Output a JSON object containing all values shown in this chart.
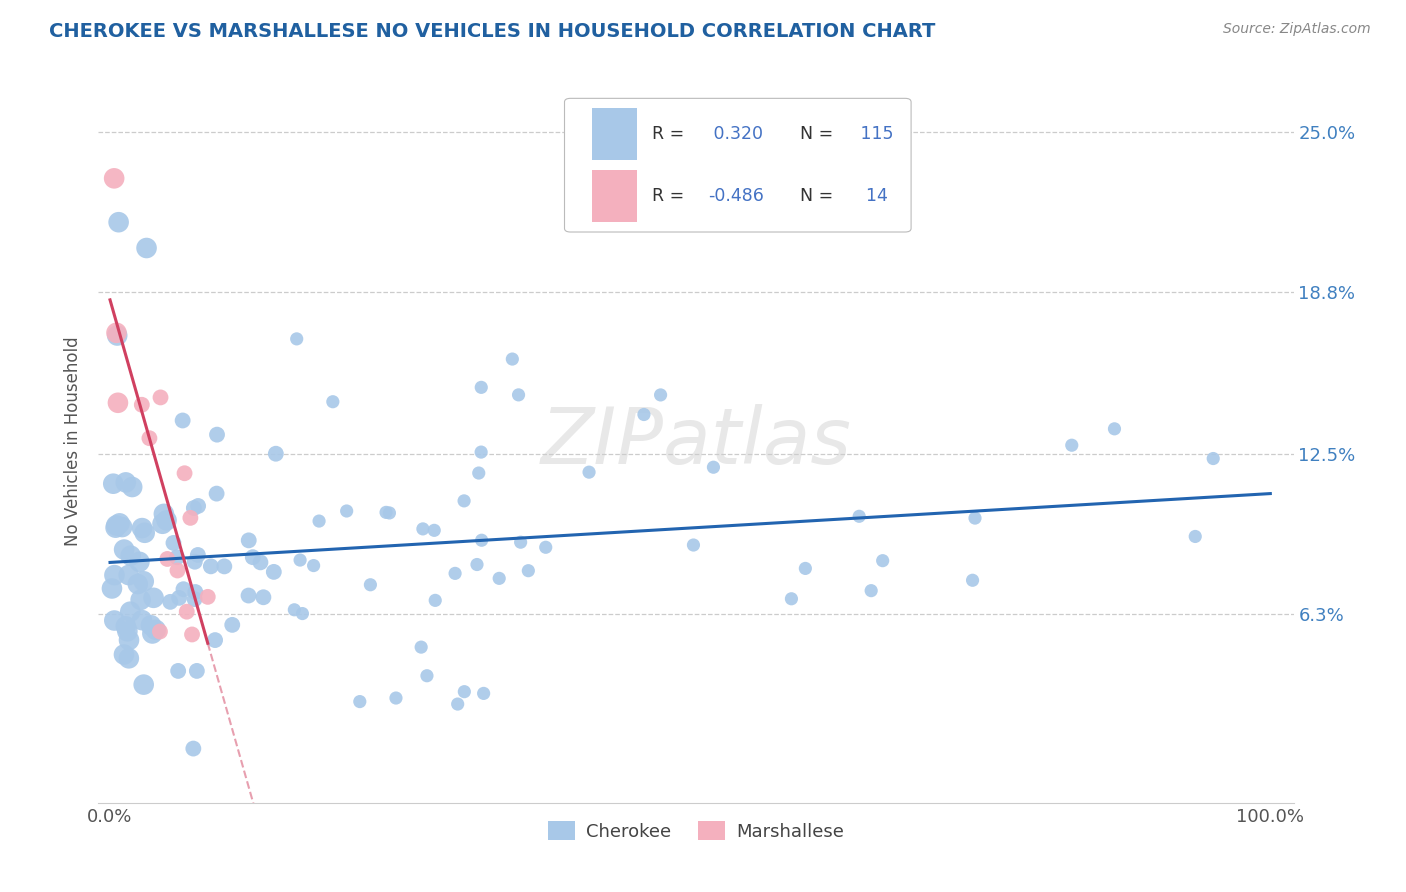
{
  "title": "CHEROKEE VS MARSHALLESE NO VEHICLES IN HOUSEHOLD CORRELATION CHART",
  "source_text": "Source: ZipAtlas.com",
  "ylabel": "No Vehicles in Household",
  "xlim": [
    -1,
    102
  ],
  "ylim": [
    -1,
    27
  ],
  "ytick_vals": [
    6.3,
    12.5,
    18.8,
    25.0
  ],
  "ytick_labels": [
    "6.3%",
    "12.5%",
    "18.8%",
    "25.0%"
  ],
  "xtick_vals": [
    0,
    100
  ],
  "xtick_labels": [
    "0.0%",
    "100.0%"
  ],
  "cherokee_color": "#a8c8e8",
  "marshallese_color": "#f4b0be",
  "cherokee_line_color": "#2264b0",
  "marshallese_line_color": "#d04060",
  "cherokee_R": 0.32,
  "cherokee_N": 115,
  "marshallese_R": -0.486,
  "marshallese_N": 14,
  "background_color": "#ffffff",
  "grid_color": "#cccccc",
  "title_color": "#2060a0",
  "right_tick_color": "#4080c0",
  "watermark_text": "ZIPatlas",
  "legend_text_color": "#333333",
  "legend_blue_color": "#4472c4",
  "source_color": "#888888"
}
